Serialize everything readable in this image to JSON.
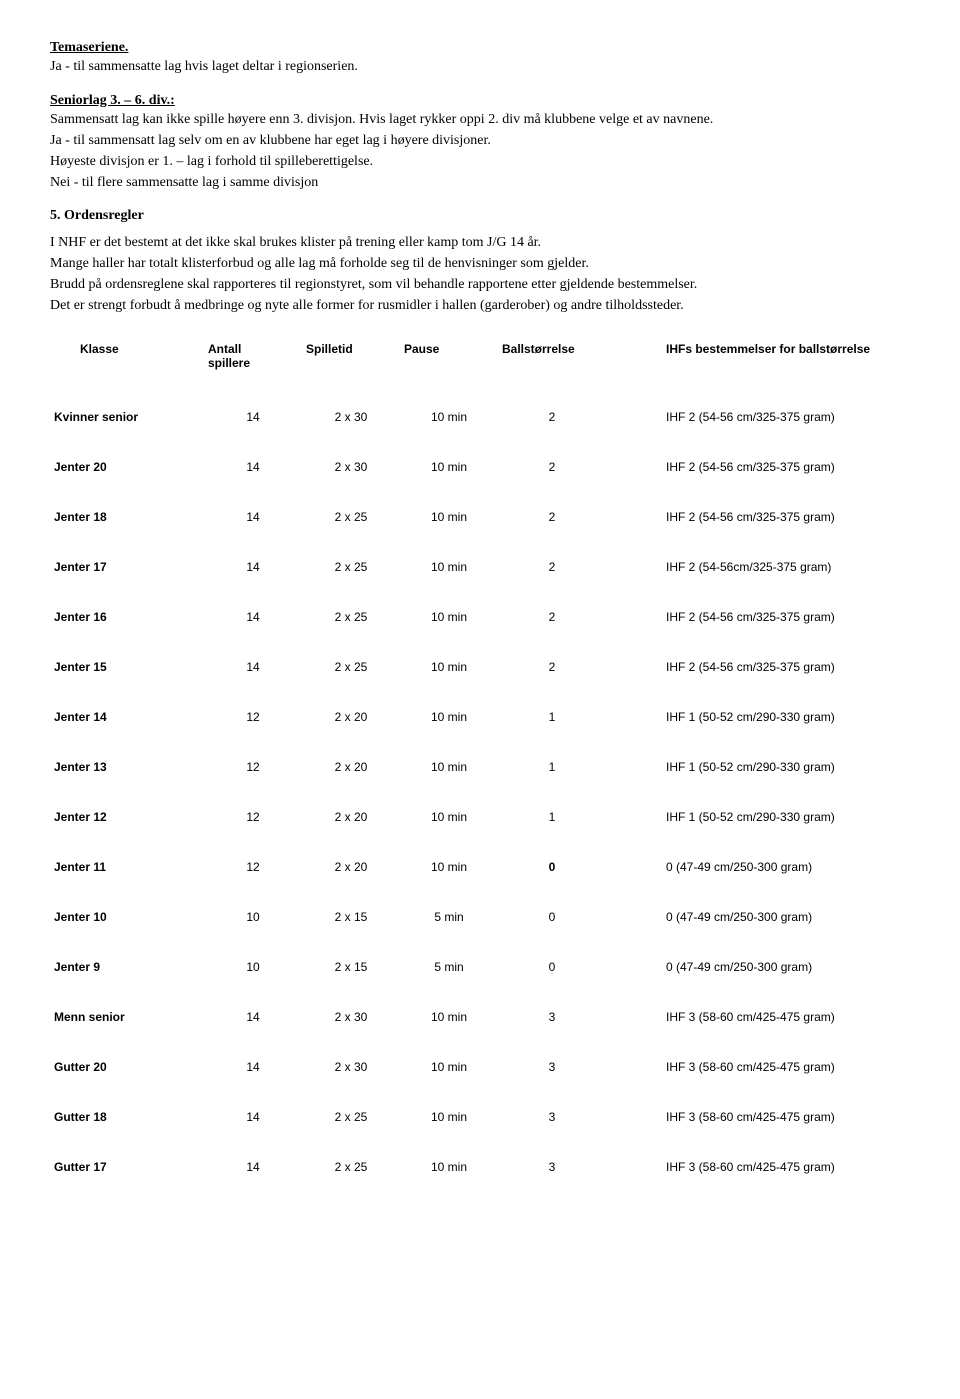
{
  "section1": {
    "title": "Temaseriene.",
    "line1": "Ja - til sammensatte lag hvis laget deltar i regionserien."
  },
  "section2": {
    "title": "Seniorlag 3. – 6. div.:",
    "line1": "Sammensatt lag kan ikke spille høyere enn 3. divisjon. Hvis laget rykker oppi 2. div må klubbene velge et av navnene.",
    "line2": "Ja - til sammensatt lag selv om en av klubbene har eget lag i høyere divisjoner.",
    "line3": "Høyeste divisjon er 1. – lag i forhold til spilleberettigelse.",
    "line4": "Nei - til flere sammensatte lag i samme divisjon"
  },
  "section3": {
    "heading": "5. Ordensregler",
    "p1": "I NHF er det bestemt at det ikke skal brukes klister på trening eller kamp tom J/G 14 år.",
    "p2": "Mange haller har totalt klisterforbud og alle lag må forholde seg til de henvisninger som gjelder.",
    "p3": "Brudd på ordensreglene skal rapporteres til regionstyret, som vil behandle rapportene etter gjeldende bestemmelser.",
    "p4": "Det er strengt forbudt å medbringe og nyte alle former for rusmidler i hallen (garderober) og andre tilholdssteder."
  },
  "table": {
    "headers": {
      "klasse": "Klasse",
      "antall_l1": "Antall",
      "antall_l2": "spillere",
      "spilletid": "Spilletid",
      "pause": "Pause",
      "ball": "Ballstørrelse",
      "ihf": "IHFs bestemmelser for ballstørrelse"
    },
    "rows": [
      {
        "klasse": "Kvinner senior",
        "antall": "14",
        "spilletid": "2 x 30",
        "pause": "10 min",
        "ball": "2",
        "ihf": "IHF 2 (54-56 cm/325-375 gram)",
        "gap": false
      },
      {
        "klasse": "Jenter 20",
        "antall": "14",
        "spilletid": "2 x 30",
        "pause": "10 min",
        "ball": "2",
        "ihf": "IHF 2 (54-56 cm/325-375 gram)",
        "gap": false
      },
      {
        "klasse": "Jenter 18",
        "antall": "14",
        "spilletid": "2 x 25",
        "pause": "10 min",
        "ball": "2",
        "ihf": "IHF 2 (54-56 cm/325-375 gram)",
        "gap": false
      },
      {
        "klasse": "Jenter 17",
        "antall": "14",
        "spilletid": "2 x 25",
        "pause": "10 min",
        "ball": "2",
        "ihf": "IHF 2 (54-56cm/325-375 gram)",
        "gap": false
      },
      {
        "klasse": "Jenter 16",
        "antall": "14",
        "spilletid": "2 x 25",
        "pause": "10 min",
        "ball": "2",
        "ihf": "IHF 2 (54-56 cm/325-375 gram)",
        "gap": false
      },
      {
        "klasse": "Jenter 15",
        "antall": "14",
        "spilletid": "2 x 25",
        "pause": "10 min",
        "ball": "2",
        "ihf": "IHF 2 (54-56 cm/325-375 gram)",
        "gap": false
      },
      {
        "klasse": "Jenter 14",
        "antall": "12",
        "spilletid": "2 x 20",
        "pause": "10 min",
        "ball": "1",
        "ihf": "IHF 1 (50-52 cm/290-330 gram)",
        "gap": false
      },
      {
        "klasse": "Jenter 13",
        "antall": "12",
        "spilletid": "2 x 20",
        "pause": "10 min",
        "ball": "1",
        "ihf": "IHF 1 (50-52 cm/290-330 gram)",
        "gap": false
      },
      {
        "klasse": "Jenter 12",
        "antall": "12",
        "spilletid": "2 x 20",
        "pause": "10 min",
        "ball": "1",
        "ihf": "IHF 1 (50-52 cm/290-330 gram)",
        "gap": false
      },
      {
        "klasse": "Jenter 11",
        "antall": "12",
        "spilletid": "2 x 20",
        "pause": "10 min",
        "ball": "0",
        "ihf": "0 (47-49 cm/250-300 gram)",
        "gap": false,
        "ballbold": true
      },
      {
        "klasse": "Jenter 10",
        "antall": "10",
        "spilletid": "2 x 15",
        "pause": "5 min",
        "ball": "0",
        "ihf": "0 (47-49 cm/250-300 gram)",
        "gap": false
      },
      {
        "klasse": "Jenter  9",
        "antall": "10",
        "spilletid": "2 x 15",
        "pause": "5 min",
        "ball": "0",
        "ihf": "0 (47-49 cm/250-300 gram)",
        "gap": false
      },
      {
        "klasse": "Menn senior",
        "antall": "14",
        "spilletid": "2 x 30",
        "pause": "10 min",
        "ball": "3",
        "ihf": "IHF 3 (58-60 cm/425-475 gram)",
        "gap": true
      },
      {
        "klasse": "Gutter 20",
        "antall": "14",
        "spilletid": "2 x 30",
        "pause": "10 min",
        "ball": "3",
        "ihf": "IHF 3 (58-60 cm/425-475 gram)",
        "gap": false
      },
      {
        "klasse": "Gutter 18",
        "antall": "14",
        "spilletid": "2 x 25",
        "pause": "10 min",
        "ball": "3",
        "ihf": "IHF 3 (58-60 cm/425-475 gram)",
        "gap": false
      },
      {
        "klasse": "Gutter 17",
        "antall": "14",
        "spilletid": "2 x 25",
        "pause": "10 min",
        "ball": "3",
        "ihf": "IHF 3 (58-60 cm/425-475 gram)",
        "gap": false
      }
    ]
  }
}
